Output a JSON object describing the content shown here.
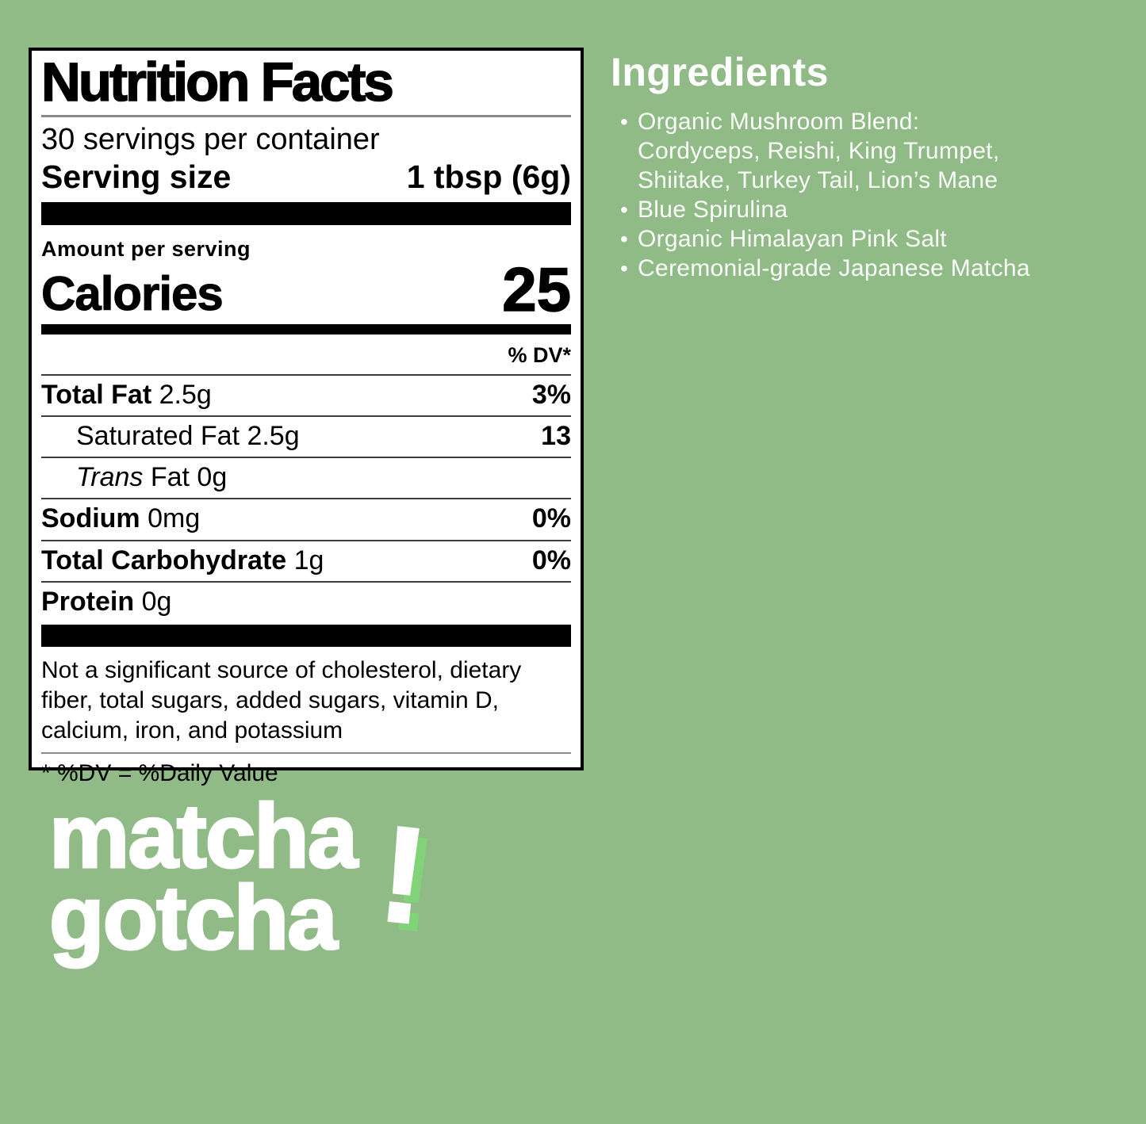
{
  "colors": {
    "background": "#90bb86",
    "label_background": "#ffffff",
    "label_text": "#000000",
    "ingredients_text": "#ffffff",
    "logo_text": "#ffffff",
    "logo_exclamation_shadow": "#82d279"
  },
  "label": {
    "title": "Nutrition Facts",
    "servings_per_container": "30 servings per container",
    "serving_size_label": "Serving size",
    "serving_size_value": "1 tbsp (6g)",
    "amount_per_serving": "Amount per serving",
    "calories_label": "Calories",
    "calories_value": "25",
    "dv_header": "% DV*",
    "rows": [
      {
        "bold": "Total Fat",
        "rest": " 2.5g",
        "dv": "3%"
      },
      {
        "rest": "Saturated Fat 2.5g",
        "dv": "13"
      },
      {
        "italic": "Trans",
        "rest": " Fat 0g",
        "dv": ""
      },
      {
        "bold": "Sodium",
        "rest": " 0mg",
        "dv": "0%"
      },
      {
        "bold": "Total Carbohydrate",
        "rest": " 1g",
        "dv": "0%"
      },
      {
        "bold": "Protein",
        "rest": " 0g",
        "dv": ""
      }
    ],
    "footnote": "Not a significant source of cholesterol, dietary fiber, total sugars, added sugars, vitamin D, calcium, iron, and potassium",
    "dv_note": "* %DV = %Daily Value"
  },
  "ingredients": {
    "title": "Ingredients",
    "bullet_glyph": "•",
    "items": [
      "Organic Mushroom Blend:\nCordyceps, Reishi, King Trumpet,\nShiitake, Turkey Tail, Lion’s Mane",
      "Blue Spirulina",
      "Organic Himalayan Pink Salt",
      "Ceremonial-grade Japanese Matcha"
    ]
  },
  "logo": {
    "line1": "matcha",
    "line2": "gotcha",
    "exclamation": "!"
  }
}
